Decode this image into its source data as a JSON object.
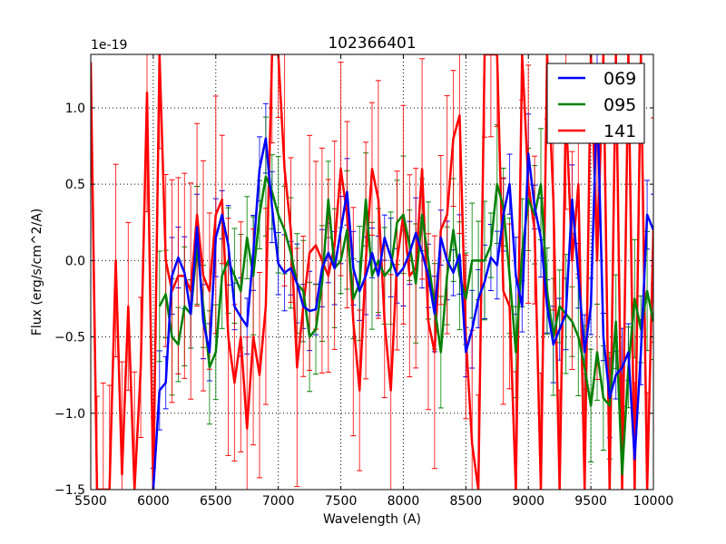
{
  "chart_data": {
    "type": "line",
    "title": "102366401",
    "xlabel": "Wavelength (A)",
    "ylabel": "Flux (erg/s/cm^2/A)",
    "offset_label": "1e-19",
    "xlim": [
      5500,
      10000
    ],
    "ylim": [
      -1.5,
      1.35
    ],
    "grid": true,
    "legend_position": "top-right",
    "xticks": [
      5500,
      6000,
      6500,
      7000,
      7500,
      8000,
      8500,
      9000,
      9500,
      10000
    ],
    "xtick_labels": [
      "5500",
      "6000",
      "6500",
      "7000",
      "7500",
      "8000",
      "8500",
      "9000",
      "9500",
      "10000"
    ],
    "yticks": [
      -1.5,
      -1.0,
      -0.5,
      0.0,
      0.5,
      1.0
    ],
    "ytick_labels": [
      "−1.5",
      "−1.0",
      "−0.5",
      "0.0",
      "0.5",
      "1.0"
    ],
    "series": [
      {
        "name": "069",
        "color": "#0000ff",
        "error": 0.2,
        "x_start": 6000,
        "x_step": 50,
        "values": [
          -1.5,
          -0.85,
          -0.8,
          -0.1,
          0.02,
          -0.08,
          -0.35,
          0.22,
          -0.4,
          -0.6,
          0.15,
          0.3,
          0.1,
          -0.3,
          -0.37,
          -0.43,
          0.05,
          0.6,
          0.8,
          0.35,
          -0.02,
          -0.08,
          -0.05,
          -0.15,
          -0.3,
          -0.33,
          -0.32,
          -0.05,
          0.05,
          -0.05,
          0.2,
          0.45,
          -0.05,
          -0.2,
          -0.1,
          0.05,
          -0.1,
          0.15,
          0.02,
          -0.1,
          -0.05,
          0.05,
          0.18,
          0.05,
          -0.1,
          -0.35,
          0.15,
          0.0,
          -0.08,
          0.04,
          -0.6,
          -0.45,
          -0.25,
          -0.14,
          0.02,
          -0.03,
          0.3,
          0.5,
          -0.1,
          -0.3,
          0.7,
          0.35,
          0.15,
          -0.3,
          -0.55,
          -0.45,
          -0.35,
          0.4,
          -0.1,
          -0.6,
          -0.3,
          1.1,
          -0.5,
          -0.9,
          -0.75,
          -0.7,
          -0.6,
          -1.3,
          -0.6,
          0.3,
          0.2
        ]
      },
      {
        "name": "095",
        "color": "#008000",
        "error": 0.3,
        "x_start": 6050,
        "x_step": 50,
        "values": [
          -0.3,
          -0.22,
          -0.5,
          -0.55,
          -0.3,
          -0.35,
          0.1,
          -0.3,
          -0.7,
          -0.6,
          -0.1,
          0.0,
          -0.1,
          -0.2,
          0.15,
          -0.1,
          0.3,
          0.55,
          0.45,
          0.3,
          0.2,
          0.05,
          -0.15,
          -0.2,
          -0.5,
          -0.45,
          -0.15,
          0.4,
          -0.05,
          0.0,
          0.2,
          -0.25,
          -0.15,
          0.4,
          -0.1,
          0.0,
          -0.1,
          -0.05,
          0.25,
          0.3,
          0.1,
          -0.15,
          0.3,
          0.0,
          -0.3,
          -0.6,
          -0.1,
          0.2,
          -0.1,
          -0.25,
          0.0,
          0.0,
          0.0,
          0.1,
          0.5,
          0.35,
          -0.1,
          -0.6,
          0.05,
          0.4,
          0.3,
          0.5,
          -0.2,
          -0.5,
          -0.3,
          -0.35,
          -0.4,
          -0.5,
          -0.7,
          -0.95,
          -0.6,
          -0.9,
          -0.95,
          -0.4,
          -1.4,
          -0.7,
          -0.25,
          -0.45,
          -0.2,
          -0.4
        ]
      },
      {
        "name": "141",
        "color": "#ff0000",
        "error": 0.6,
        "x_start": 5500,
        "x_step": 50,
        "values": [
          1.3,
          -1.5,
          -1.5,
          -1.5,
          0.0,
          -1.4,
          -0.3,
          -1.5,
          -0.7,
          1.1,
          -1.5,
          1.5,
          0.0,
          -0.2,
          -0.1,
          -0.1,
          -0.2,
          0.3,
          -0.1,
          -0.2,
          0.3,
          0.4,
          -0.5,
          -0.8,
          -0.5,
          -1.1,
          -0.5,
          -0.75,
          -0.3,
          1.5,
          1.5,
          0.6,
          0.2,
          -0.7,
          -0.3,
          0.05,
          0.1,
          0.0,
          -0.1,
          0.1,
          0.6,
          0.3,
          -0.4,
          -0.85,
          0.0,
          0.6,
          0.4,
          -0.4,
          -0.85,
          0.0,
          0.3,
          -0.1,
          -0.05,
          0.6,
          -0.4,
          -0.6,
          0.2,
          0.3,
          0.8,
          0.95,
          -0.5,
          -1.2,
          -1.5,
          1.5,
          1.5,
          1.5,
          -0.2,
          -0.3,
          -1.5,
          1.5,
          0.5,
          0.2,
          -1.5,
          1.5,
          0.4,
          -1.5,
          1.0,
          0.0,
          0.5,
          -1.5,
          1.5,
          0.0,
          1.5,
          -1.5,
          1.5,
          -1.5,
          1.5,
          -1.5,
          1.5,
          -1.5,
          0.2
        ]
      }
    ]
  }
}
